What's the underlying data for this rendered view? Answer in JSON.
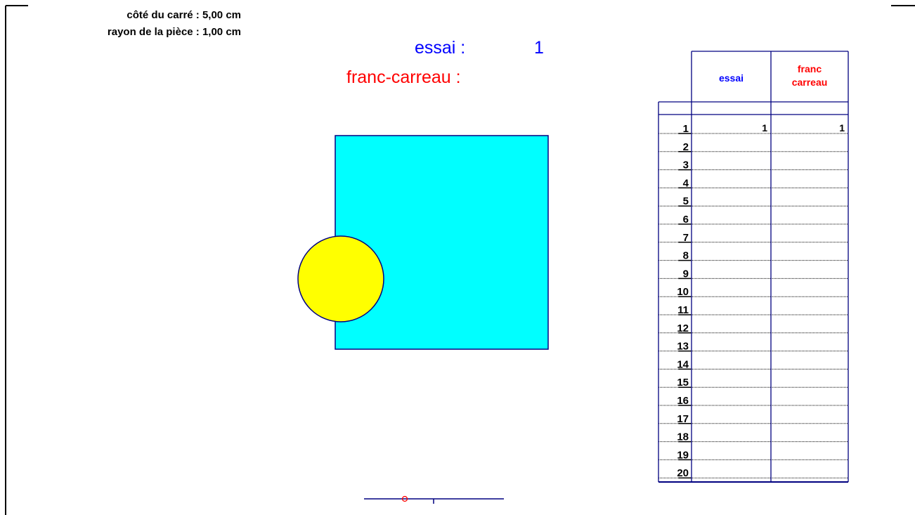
{
  "info": [
    "côté du carré : 5,00 cm",
    "rayon de la pièce : 1,00 cm"
  ],
  "status": {
    "trial_label": "essai :",
    "trial_value": "1",
    "franc_label": "franc-carreau :"
  },
  "table": {
    "headers": {
      "essai": "essai",
      "franc_carreau": [
        "franc",
        "carreau"
      ]
    },
    "rows": [
      {
        "n": 1,
        "essai": 1,
        "franc_carreau": 1
      },
      {
        "n": 2
      },
      {
        "n": 3
      },
      {
        "n": 4
      },
      {
        "n": 5
      },
      {
        "n": 6
      },
      {
        "n": 7
      },
      {
        "n": 8
      },
      {
        "n": 9
      },
      {
        "n": 10
      },
      {
        "n": 11
      },
      {
        "n": 12
      },
      {
        "n": 13
      },
      {
        "n": 14
      },
      {
        "n": 15
      },
      {
        "n": 16
      },
      {
        "n": 17
      },
      {
        "n": 18
      },
      {
        "n": 19
      },
      {
        "n": 20
      }
    ]
  }
}
